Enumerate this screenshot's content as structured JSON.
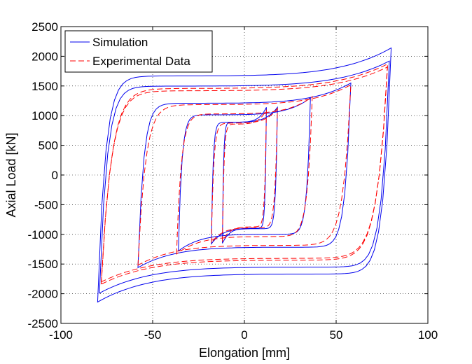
{
  "chart_data": {
    "type": "line",
    "title": "",
    "xlabel": "Elongation [mm]",
    "ylabel": "Axial Load [kN]",
    "xlim": [
      -100,
      100
    ],
    "ylim": [
      -2500,
      2500
    ],
    "xticks": [
      "-100",
      "-50",
      "0",
      "50",
      "100"
    ],
    "yticks": [
      "2500",
      "2000",
      "1500",
      "1000",
      "500",
      "0",
      "-500",
      "-1000",
      "-1500",
      "-2000",
      "-2500"
    ],
    "grid": true,
    "legend_position": "top-left",
    "series": [
      {
        "name": "Simulation",
        "color": "#0000ee",
        "style": "solid",
        "loops": [
          {
            "amp": 12,
            "max": 1140,
            "min": -1150
          },
          {
            "amp": 18,
            "max": 1140,
            "min": -1160
          },
          {
            "amp": 36,
            "max": 1300,
            "min": -1280
          },
          {
            "amp": 58,
            "max": 1550,
            "min": -1560
          },
          {
            "amp": 80,
            "max": 2140,
            "min": -2140
          },
          {
            "amp": 79,
            "max": 1920,
            "min": -1990
          }
        ]
      },
      {
        "name": "Experimental Data",
        "color": "#ff0000",
        "style": "dashed",
        "loops": [
          {
            "amp": 12,
            "max": 1100,
            "min": -1120
          },
          {
            "amp": 18,
            "max": 1120,
            "min": -1140
          },
          {
            "amp": 37,
            "max": 1320,
            "min": -1330
          },
          {
            "amp": 58,
            "max": 1520,
            "min": -1520
          },
          {
            "amp": 78,
            "max": 1870,
            "min": -1840
          },
          {
            "amp": 78,
            "max": 1820,
            "min": -1800
          }
        ]
      }
    ]
  }
}
